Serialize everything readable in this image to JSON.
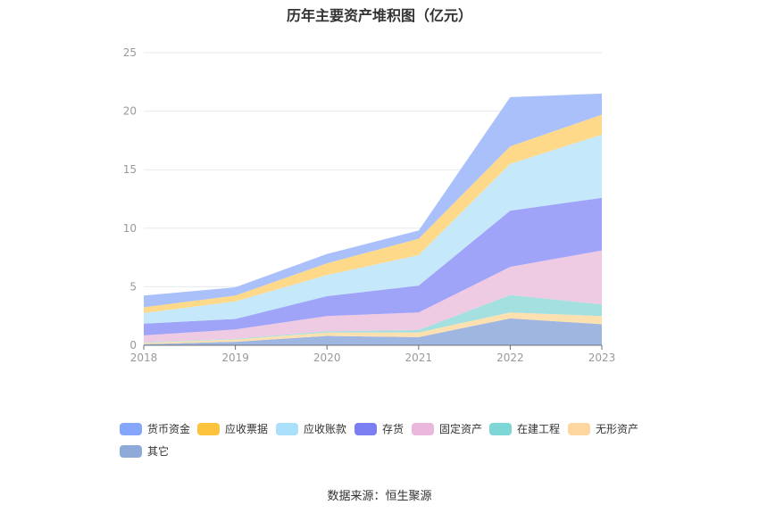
{
  "chart_data": {
    "type": "area",
    "stacked": true,
    "title": "历年主要资产堆积图（亿元）",
    "categories": [
      "2018",
      "2019",
      "2020",
      "2021",
      "2022",
      "2023"
    ],
    "ylim": [
      0,
      25
    ],
    "yticks": [
      "0",
      "5",
      "10",
      "15",
      "20",
      "25"
    ],
    "grid": true,
    "legend_position": "bottom",
    "series": [
      {
        "name": "其它",
        "color": "#9fb7e0",
        "values": [
          0.1,
          0.3,
          0.8,
          0.7,
          2.3,
          1.8
        ]
      },
      {
        "name": "无形资产",
        "color": "#fde0b0",
        "values": [
          0.1,
          0.2,
          0.3,
          0.4,
          0.5,
          0.7
        ]
      },
      {
        "name": "在建工程",
        "color": "#a4e0e0",
        "values": [
          0.05,
          0.05,
          0.1,
          0.2,
          1.5,
          1.0
        ]
      },
      {
        "name": "固定资产",
        "color": "#eecbe3",
        "values": [
          0.6,
          0.8,
          1.3,
          1.5,
          2.4,
          4.6
        ]
      },
      {
        "name": "存货",
        "color": "#a0a4f8",
        "values": [
          1.0,
          0.9,
          1.7,
          2.3,
          4.8,
          4.5
        ]
      },
      {
        "name": "应收账款",
        "color": "#c6e8fb",
        "values": [
          0.9,
          1.5,
          1.8,
          2.6,
          4.0,
          5.4
        ]
      },
      {
        "name": "应收票据",
        "color": "#fed98a",
        "values": [
          0.5,
          0.5,
          1.0,
          1.4,
          1.5,
          1.7
        ]
      },
      {
        "name": "货币资金",
        "color": "#a9c0fb",
        "values": [
          1.0,
          0.7,
          0.8,
          0.7,
          4.2,
          1.8
        ]
      }
    ],
    "legend_order": [
      "货币资金",
      "应收票据",
      "应收账款",
      "存货",
      "固定资产",
      "在建工程",
      "无形资产",
      "其它"
    ],
    "legend_colors": {
      "货币资金": "#86a6fb",
      "应收票据": "#fec33d",
      "应收账款": "#abe0fb",
      "存货": "#7b7ff2",
      "固定资产": "#e9b8dc",
      "在建工程": "#7fd6d6",
      "无形资产": "#fed7a0",
      "其它": "#8eaad8"
    }
  },
  "source": "数据来源：恒生聚源"
}
